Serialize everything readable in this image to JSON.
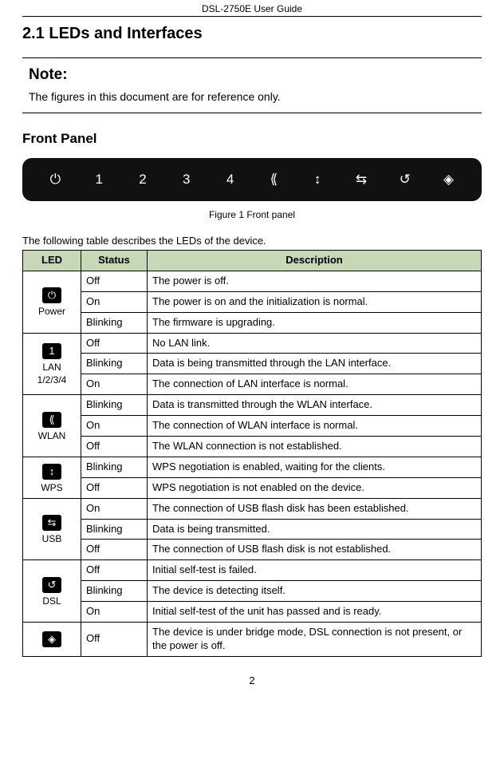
{
  "doc_header": "DSL-2750E User Guide",
  "section_heading": "2.1   LEDs and Interfaces",
  "note": {
    "title": "Note:",
    "text": "The figures in this document are for reference only."
  },
  "sub_heading": "Front Panel",
  "panel_icons": [
    "⏻",
    "1",
    "2",
    "3",
    "4",
    "⟪",
    "↕",
    "⇆",
    "↺",
    "◈"
  ],
  "figure_caption": "Figure 1 Front panel",
  "intro_text": "The following table describes the LEDs of the device.",
  "table": {
    "header_bg": "#c7d8b6",
    "columns": [
      "LED",
      "Status",
      "Description"
    ],
    "groups": [
      {
        "icon_glyph": "⏻",
        "label": "Power",
        "rows": [
          {
            "status": "Off",
            "desc": "The power is off."
          },
          {
            "status": "On",
            "desc": "The power is on and the initialization is normal."
          },
          {
            "status": "Blinking",
            "desc": "The firmware is upgrading."
          }
        ]
      },
      {
        "icon_glyph": "1",
        "label": "LAN 1/2/3/4",
        "rows": [
          {
            "status": "Off",
            "desc": "No LAN link."
          },
          {
            "status": "Blinking",
            "desc": "Data is being transmitted through the LAN interface."
          },
          {
            "status": "On",
            "desc": "The connection of LAN interface is normal."
          }
        ]
      },
      {
        "icon_glyph": "⟪",
        "label": "WLAN",
        "rows": [
          {
            "status": "Blinking",
            "desc": "Data is transmitted through the WLAN interface."
          },
          {
            "status": "On",
            "desc": "The connection of WLAN interface is normal."
          },
          {
            "status": "Off",
            "desc": "The WLAN connection is not established."
          }
        ]
      },
      {
        "icon_glyph": "↕",
        "label": "WPS",
        "rows": [
          {
            "status": "Blinking",
            "desc": "WPS negotiation is enabled, waiting for the clients."
          },
          {
            "status": "Off",
            "desc": "WPS negotiation is not enabled on the device."
          }
        ]
      },
      {
        "icon_glyph": "⇆",
        "label": "USB",
        "rows": [
          {
            "status": "On",
            "desc": "The connection of USB flash disk has been established.",
            "justify": true
          },
          {
            "status": "Blinking",
            "desc": "Data is being transmitted."
          },
          {
            "status": "Off",
            "desc": "The connection of USB flash disk is not established."
          }
        ]
      },
      {
        "icon_glyph": "↺",
        "label": "DSL",
        "rows": [
          {
            "status": "Off",
            "desc": "Initial self-test is failed."
          },
          {
            "status": "Blinking",
            "desc": "The device is detecting itself."
          },
          {
            "status": "On",
            "desc": "Initial self-test of the unit has passed and is ready."
          }
        ]
      },
      {
        "icon_glyph": "◈",
        "label": "",
        "rows": [
          {
            "status": "Off",
            "desc": "The device is under bridge mode, DSL connection is not present, or the power is off."
          }
        ]
      }
    ]
  },
  "page_number": "2"
}
